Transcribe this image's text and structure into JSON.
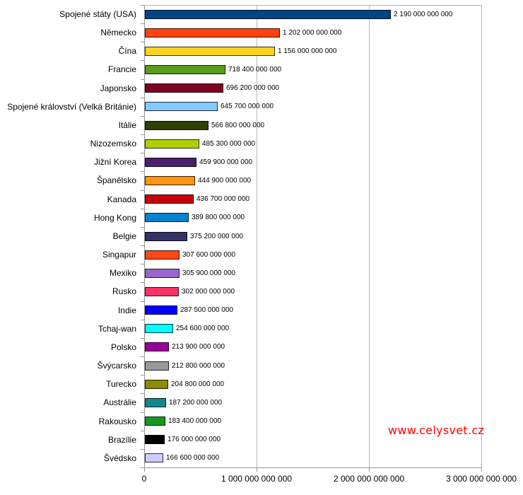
{
  "chart_data": {
    "type": "bar",
    "orientation": "horizontal",
    "title": "",
    "categories": [
      "Spojené státy (USA)",
      "Německo",
      "Čína",
      "Francie",
      "Japonsko",
      "Spojené království (Velká Británie)",
      "Itálie",
      "Nizozemsko",
      "Jižní Korea",
      "Španělsko",
      "Kanada",
      "Hong Kong",
      "Belgie",
      "Singapur",
      "Mexiko",
      "Rusko",
      "Indie",
      "Tchaj-wan",
      "Polsko",
      "Švýcarsko",
      "Turecko",
      "Austrálie",
      "Rakousko",
      "Brazílie",
      "Švédsko"
    ],
    "values": [
      2190000000000,
      1202000000000,
      1156000000000,
      718400000000,
      696200000000,
      645700000000,
      566800000000,
      485300000000,
      459900000000,
      444900000000,
      436700000000,
      389800000000,
      375200000000,
      307600000000,
      305900000000,
      302000000000,
      287500000000,
      254600000000,
      213900000000,
      212800000000,
      204800000000,
      187200000000,
      183400000000,
      176000000000,
      166600000000
    ],
    "value_labels": [
      "2 190 000 000 000",
      "1 202 000 000 000",
      "1 156 000 000 000",
      "718 400 000 000",
      "696 200 000 000",
      "645 700 000 000",
      "566 800 000 000",
      "485 300 000 000",
      "459 900 000 000",
      "444 900 000 000",
      "436 700 000 000",
      "389 800 000 000",
      "375 200 000 000",
      "307 600 000 000",
      "305 900 000 000",
      "302 000 000 000",
      "287 500 000 000",
      "254 600 000 000",
      "213 900 000 000",
      "212 800 000 000",
      "204 800 000 000",
      "187 200 000 000",
      "183 400 000 000",
      "176 000 000 000",
      "166 600 000 000"
    ],
    "colors": [
      "#004586",
      "#FF420E",
      "#FFD320",
      "#579D1C",
      "#7E0021",
      "#83CAFF",
      "#314004",
      "#AECF00",
      "#4B1F6F",
      "#FF950E",
      "#C5000B",
      "#0084D1",
      "#333366",
      "#FF4719",
      "#9966CC",
      "#FF3366",
      "#0000FF",
      "#00FFFF",
      "#990099",
      "#999999",
      "#8C8C00",
      "#12898C",
      "#1A9622",
      "#000000",
      "#CCCCFF"
    ],
    "xlim": [
      0,
      3000000000000
    ],
    "x_tick_labels": [
      "0",
      "1 000 000 000 000",
      "2 000 000 000 000",
      "3 000 000 000 000"
    ],
    "grid": "vertical-major",
    "legend": "none"
  },
  "watermark": {
    "text": "www.celysvet.cz",
    "color": "#FF0000"
  }
}
